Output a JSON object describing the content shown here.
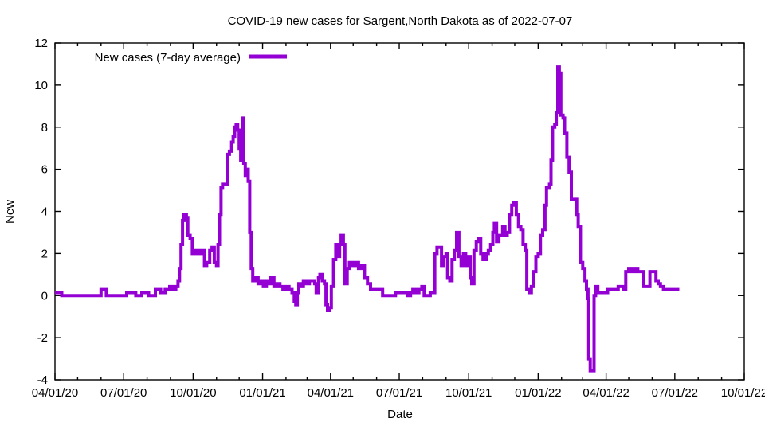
{
  "chart_data": {
    "type": "line",
    "title": "COVID-19 new cases for Sargent,North Dakota as of 2022-07-07",
    "xlabel": "Date",
    "ylabel": "New",
    "legend": {
      "label": "New cases (7-day average)",
      "position": "top-left"
    },
    "line_color": "#9400D3",
    "border_color": "#000000",
    "background_color": "#ffffff",
    "grid": false,
    "ylim": [
      -4,
      12
    ],
    "xlim": [
      "2020-04-01",
      "2022-10-01"
    ],
    "y_ticks": [
      -4,
      -2,
      0,
      2,
      4,
      6,
      8,
      10,
      12
    ],
    "x_ticks": [
      {
        "label": "04/01/20",
        "date": "2020-04-01"
      },
      {
        "label": "07/01/20",
        "date": "2020-07-01"
      },
      {
        "label": "10/01/20",
        "date": "2020-10-01"
      },
      {
        "label": "01/01/21",
        "date": "2021-01-01"
      },
      {
        "label": "04/01/21",
        "date": "2021-04-01"
      },
      {
        "label": "07/01/21",
        "date": "2021-07-01"
      },
      {
        "label": "10/01/21",
        "date": "2021-10-01"
      },
      {
        "label": "01/01/22",
        "date": "2022-01-01"
      },
      {
        "label": "04/01/22",
        "date": "2022-04-01"
      },
      {
        "label": "07/01/22",
        "date": "2022-07-01"
      },
      {
        "label": "10/01/22",
        "date": "2022-10-01"
      }
    ],
    "series": [
      {
        "name": "New cases (7-day average)",
        "points": [
          [
            "2020-04-01",
            0.14
          ],
          [
            "2020-04-10",
            0.0
          ],
          [
            "2020-05-30",
            0.0
          ],
          [
            "2020-06-01",
            0.29
          ],
          [
            "2020-06-08",
            0.0
          ],
          [
            "2020-07-05",
            0.14
          ],
          [
            "2020-07-17",
            0.0
          ],
          [
            "2020-07-25",
            0.14
          ],
          [
            "2020-08-03",
            0.0
          ],
          [
            "2020-08-12",
            0.29
          ],
          [
            "2020-08-19",
            0.14
          ],
          [
            "2020-08-25",
            0.29
          ],
          [
            "2020-08-31",
            0.43
          ],
          [
            "2020-09-04",
            0.29
          ],
          [
            "2020-09-08",
            0.43
          ],
          [
            "2020-09-11",
            0.71
          ],
          [
            "2020-09-13",
            1.29
          ],
          [
            "2020-09-15",
            2.43
          ],
          [
            "2020-09-17",
            3.57
          ],
          [
            "2020-09-19",
            3.86
          ],
          [
            "2020-09-22",
            3.71
          ],
          [
            "2020-09-24",
            2.86
          ],
          [
            "2020-09-27",
            2.71
          ],
          [
            "2020-09-30",
            2.0
          ],
          [
            "2020-10-04",
            2.14
          ],
          [
            "2020-10-08",
            2.0
          ],
          [
            "2020-10-12",
            2.14
          ],
          [
            "2020-10-16",
            1.43
          ],
          [
            "2020-10-19",
            1.57
          ],
          [
            "2020-10-23",
            2.14
          ],
          [
            "2020-10-26",
            2.29
          ],
          [
            "2020-10-29",
            1.57
          ],
          [
            "2020-11-01",
            1.43
          ],
          [
            "2020-11-03",
            2.43
          ],
          [
            "2020-11-05",
            3.86
          ],
          [
            "2020-11-07",
            5.14
          ],
          [
            "2020-11-09",
            5.29
          ],
          [
            "2020-11-15",
            6.71
          ],
          [
            "2020-11-18",
            6.86
          ],
          [
            "2020-11-21",
            7.29
          ],
          [
            "2020-11-23",
            7.57
          ],
          [
            "2020-11-25",
            8.0
          ],
          [
            "2020-11-27",
            8.14
          ],
          [
            "2020-11-29",
            7.86
          ],
          [
            "2020-12-01",
            7.0
          ],
          [
            "2020-12-03",
            6.43
          ],
          [
            "2020-12-05",
            8.43
          ],
          [
            "2020-12-07",
            6.29
          ],
          [
            "2020-12-09",
            5.71
          ],
          [
            "2020-12-11",
            6.0
          ],
          [
            "2020-12-13",
            5.43
          ],
          [
            "2020-12-15",
            3.0
          ],
          [
            "2020-12-17",
            1.29
          ],
          [
            "2020-12-19",
            0.71
          ],
          [
            "2020-12-22",
            0.86
          ],
          [
            "2020-12-26",
            0.57
          ],
          [
            "2020-12-29",
            0.71
          ],
          [
            "2021-01-02",
            0.43
          ],
          [
            "2021-01-06",
            0.71
          ],
          [
            "2021-01-09",
            0.57
          ],
          [
            "2021-01-12",
            0.86
          ],
          [
            "2021-01-16",
            0.43
          ],
          [
            "2021-01-20",
            0.57
          ],
          [
            "2021-01-24",
            0.43
          ],
          [
            "2021-01-28",
            0.29
          ],
          [
            "2021-02-01",
            0.43
          ],
          [
            "2021-02-05",
            0.29
          ],
          [
            "2021-02-09",
            0.14
          ],
          [
            "2021-02-12",
            -0.29
          ],
          [
            "2021-02-14",
            -0.43
          ],
          [
            "2021-02-16",
            0.14
          ],
          [
            "2021-02-18",
            0.57
          ],
          [
            "2021-02-21",
            0.43
          ],
          [
            "2021-02-24",
            0.71
          ],
          [
            "2021-02-28",
            0.57
          ],
          [
            "2021-03-04",
            0.71
          ],
          [
            "2021-03-11",
            0.57
          ],
          [
            "2021-03-13",
            0.14
          ],
          [
            "2021-03-16",
            0.86
          ],
          [
            "2021-03-18",
            1.0
          ],
          [
            "2021-03-21",
            0.71
          ],
          [
            "2021-03-24",
            0.57
          ],
          [
            "2021-03-26",
            -0.43
          ],
          [
            "2021-03-28",
            -0.71
          ],
          [
            "2021-03-31",
            -0.57
          ],
          [
            "2021-04-02",
            0.43
          ],
          [
            "2021-04-05",
            1.71
          ],
          [
            "2021-04-08",
            2.43
          ],
          [
            "2021-04-11",
            1.86
          ],
          [
            "2021-04-13",
            2.43
          ],
          [
            "2021-04-15",
            2.86
          ],
          [
            "2021-04-18",
            2.43
          ],
          [
            "2021-04-20",
            0.57
          ],
          [
            "2021-04-23",
            1.29
          ],
          [
            "2021-04-26",
            1.57
          ],
          [
            "2021-04-30",
            1.43
          ],
          [
            "2021-05-04",
            1.57
          ],
          [
            "2021-05-08",
            1.29
          ],
          [
            "2021-05-12",
            1.43
          ],
          [
            "2021-05-16",
            0.86
          ],
          [
            "2021-05-20",
            0.57
          ],
          [
            "2021-05-24",
            0.29
          ],
          [
            "2021-06-09",
            0.0
          ],
          [
            "2021-06-26",
            0.14
          ],
          [
            "2021-07-12",
            0.0
          ],
          [
            "2021-07-16",
            0.14
          ],
          [
            "2021-07-19",
            0.29
          ],
          [
            "2021-07-23",
            0.14
          ],
          [
            "2021-07-27",
            0.29
          ],
          [
            "2021-07-31",
            0.43
          ],
          [
            "2021-08-03",
            0.0
          ],
          [
            "2021-08-11",
            0.14
          ],
          [
            "2021-08-17",
            2.0
          ],
          [
            "2021-08-20",
            2.29
          ],
          [
            "2021-08-23",
            2.29
          ],
          [
            "2021-08-26",
            1.43
          ],
          [
            "2021-08-29",
            1.86
          ],
          [
            "2021-09-01",
            2.0
          ],
          [
            "2021-09-03",
            0.86
          ],
          [
            "2021-09-06",
            0.71
          ],
          [
            "2021-09-09",
            1.71
          ],
          [
            "2021-09-12",
            2.14
          ],
          [
            "2021-09-15",
            3.0
          ],
          [
            "2021-09-18",
            1.86
          ],
          [
            "2021-09-21",
            1.43
          ],
          [
            "2021-09-24",
            2.0
          ],
          [
            "2021-09-27",
            1.43
          ],
          [
            "2021-09-30",
            1.86
          ],
          [
            "2021-10-03",
            0.86
          ],
          [
            "2021-10-05",
            0.57
          ],
          [
            "2021-10-08",
            2.14
          ],
          [
            "2021-10-11",
            2.57
          ],
          [
            "2021-10-14",
            2.71
          ],
          [
            "2021-10-17",
            2.0
          ],
          [
            "2021-10-20",
            1.71
          ],
          [
            "2021-10-24",
            2.0
          ],
          [
            "2021-10-27",
            2.14
          ],
          [
            "2021-10-30",
            2.43
          ],
          [
            "2021-11-02",
            3.0
          ],
          [
            "2021-11-04",
            3.43
          ],
          [
            "2021-11-07",
            2.57
          ],
          [
            "2021-11-10",
            2.86
          ],
          [
            "2021-11-15",
            3.29
          ],
          [
            "2021-11-18",
            2.86
          ],
          [
            "2021-11-21",
            3.0
          ],
          [
            "2021-11-24",
            3.86
          ],
          [
            "2021-11-27",
            4.29
          ],
          [
            "2021-11-30",
            4.43
          ],
          [
            "2021-12-03",
            3.86
          ],
          [
            "2021-12-06",
            3.29
          ],
          [
            "2021-12-09",
            3.14
          ],
          [
            "2021-12-12",
            2.43
          ],
          [
            "2021-12-15",
            2.14
          ],
          [
            "2021-12-17",
            0.29
          ],
          [
            "2021-12-20",
            0.14
          ],
          [
            "2021-12-23",
            0.43
          ],
          [
            "2021-12-26",
            1.14
          ],
          [
            "2021-12-29",
            1.86
          ],
          [
            "2022-01-01",
            2.0
          ],
          [
            "2022-01-04",
            2.86
          ],
          [
            "2022-01-07",
            3.14
          ],
          [
            "2022-01-10",
            4.29
          ],
          [
            "2022-01-12",
            5.14
          ],
          [
            "2022-01-16",
            5.29
          ],
          [
            "2022-01-18",
            6.43
          ],
          [
            "2022-01-20",
            8.0
          ],
          [
            "2022-01-23",
            8.14
          ],
          [
            "2022-01-25",
            8.71
          ],
          [
            "2022-01-27",
            10.86
          ],
          [
            "2022-01-29",
            10.57
          ],
          [
            "2022-01-31",
            8.57
          ],
          [
            "2022-02-03",
            8.43
          ],
          [
            "2022-02-05",
            7.71
          ],
          [
            "2022-02-08",
            6.57
          ],
          [
            "2022-02-11",
            5.86
          ],
          [
            "2022-02-14",
            4.57
          ],
          [
            "2022-02-18",
            4.57
          ],
          [
            "2022-02-21",
            3.86
          ],
          [
            "2022-02-23",
            3.29
          ],
          [
            "2022-02-26",
            1.57
          ],
          [
            "2022-03-01",
            1.29
          ],
          [
            "2022-03-04",
            0.71
          ],
          [
            "2022-03-06",
            0.29
          ],
          [
            "2022-03-08",
            -0.14
          ],
          [
            "2022-03-09",
            -3.0
          ],
          [
            "2022-03-11",
            -3.57
          ],
          [
            "2022-03-14",
            -3.57
          ],
          [
            "2022-03-16",
            0.0
          ],
          [
            "2022-03-18",
            0.43
          ],
          [
            "2022-03-21",
            0.14
          ],
          [
            "2022-03-28",
            0.14
          ],
          [
            "2022-04-03",
            0.29
          ],
          [
            "2022-04-10",
            0.29
          ],
          [
            "2022-04-17",
            0.43
          ],
          [
            "2022-04-24",
            0.29
          ],
          [
            "2022-04-27",
            1.14
          ],
          [
            "2022-05-01",
            1.29
          ],
          [
            "2022-05-05",
            1.14
          ],
          [
            "2022-05-09",
            1.29
          ],
          [
            "2022-05-13",
            1.14
          ],
          [
            "2022-05-17",
            1.14
          ],
          [
            "2022-05-21",
            0.43
          ],
          [
            "2022-05-26",
            0.43
          ],
          [
            "2022-05-29",
            1.14
          ],
          [
            "2022-06-03",
            1.14
          ],
          [
            "2022-06-06",
            0.71
          ],
          [
            "2022-06-09",
            0.57
          ],
          [
            "2022-06-12",
            0.43
          ],
          [
            "2022-06-16",
            0.29
          ],
          [
            "2022-06-22",
            0.29
          ],
          [
            "2022-07-01",
            0.29
          ],
          [
            "2022-07-07",
            0.29
          ]
        ]
      }
    ]
  }
}
